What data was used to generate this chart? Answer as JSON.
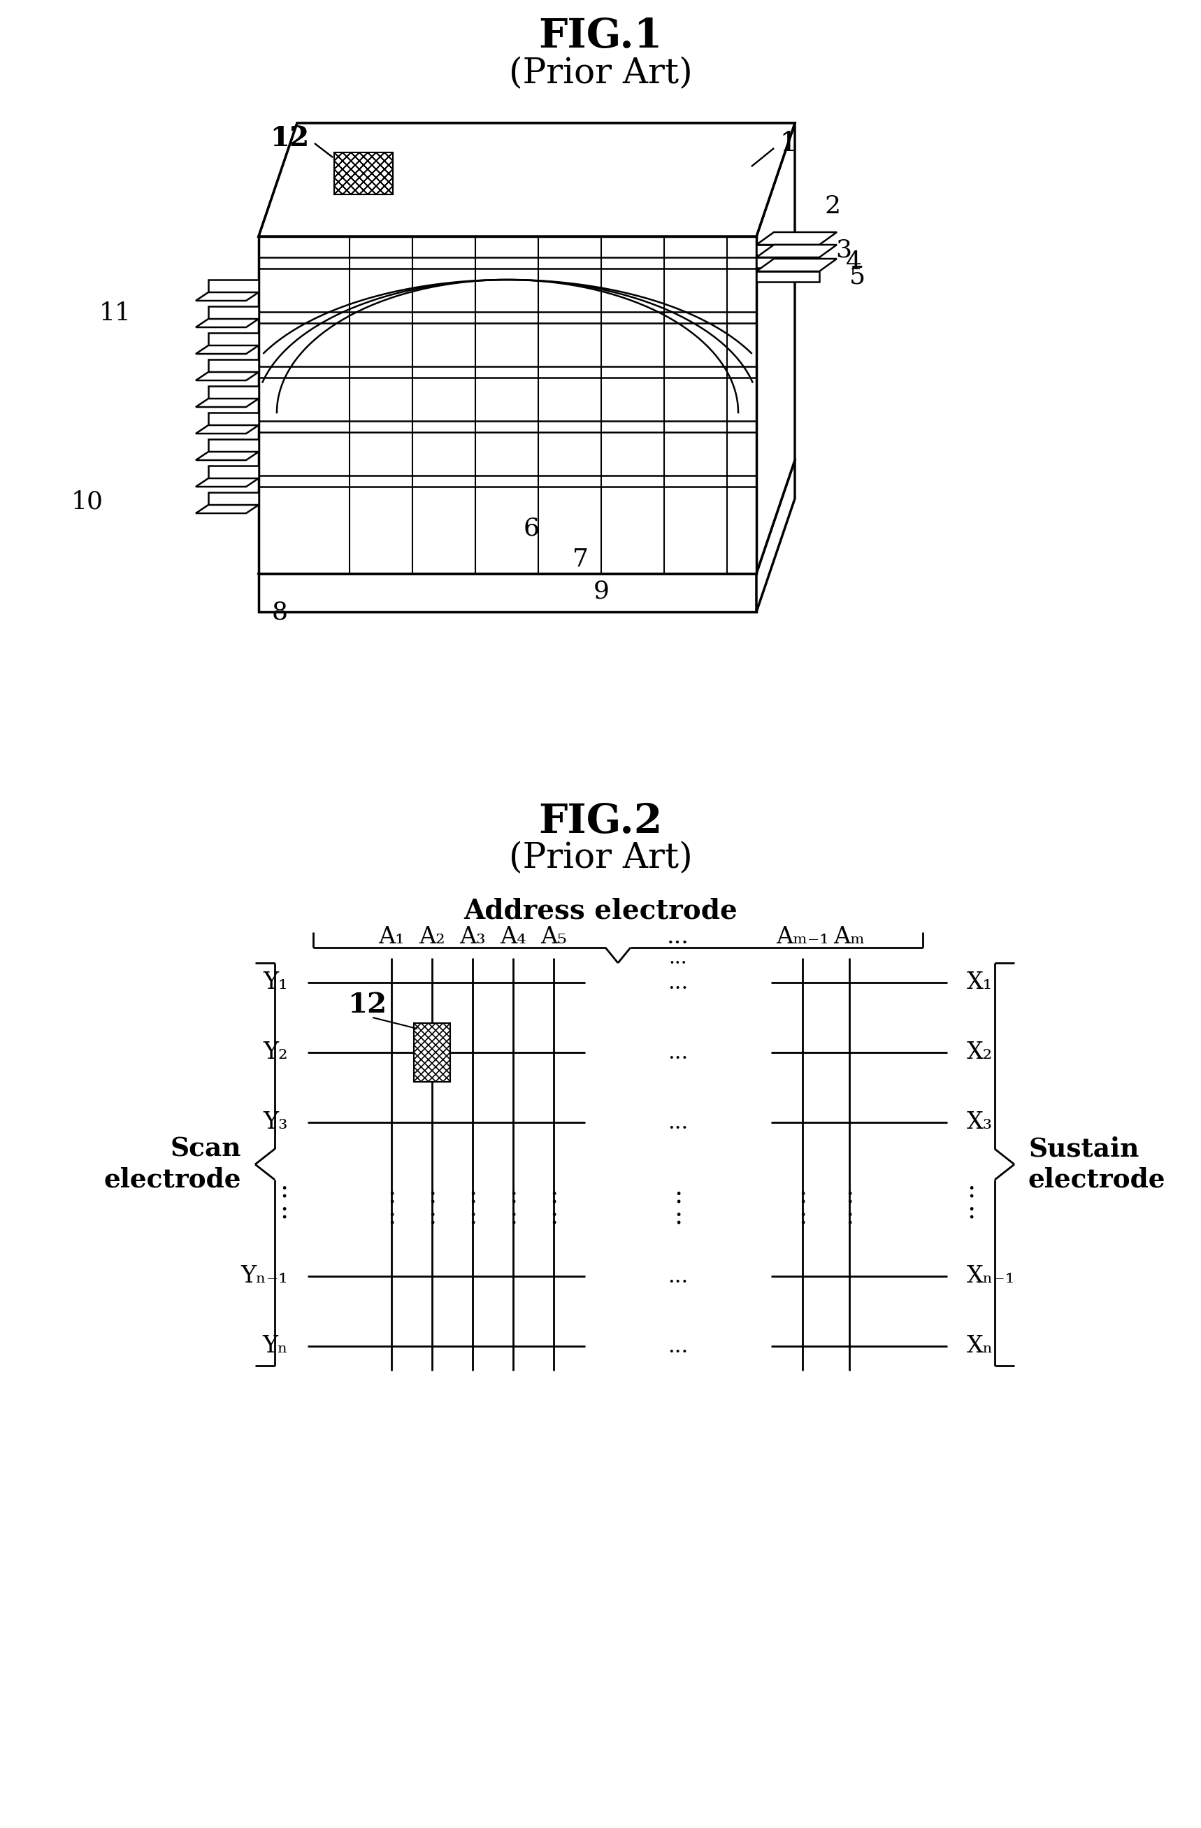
{
  "fig1_title": "FIG.1",
  "fig1_subtitle": "(Prior Art)",
  "fig2_title": "FIG.2",
  "fig2_subtitle": "(Prior Art)",
  "bg": "#ffffff",
  "fg": "#000000",
  "fig2_address": "Address electrode",
  "fig2_scan_line1": "Scan",
  "fig2_scan_line2": "electrode",
  "fig2_sustain_line1": "Sustain",
  "fig2_sustain_line2": "electrode",
  "fig2_col_A": [
    "A₁",
    "A₂",
    "A₃",
    "A₄",
    "A₅"
  ],
  "fig2_col_Am": [
    "Aₘ₋₁",
    "Aₘ"
  ],
  "fig2_row_Y": [
    "Y₁",
    "Y₂",
    "Y₃",
    "Yₙ₋₁",
    "Yₙ"
  ],
  "fig2_row_X": [
    "X₁",
    "X₂",
    "X₃",
    "Xₙ₋₁",
    "Xₙ"
  ],
  "cell_label": "12",
  "label1": "1",
  "label2": "2",
  "label3": "3",
  "label4": "4",
  "label5": "5",
  "label6": "6",
  "label7": "7",
  "label8": "8",
  "label9": "9",
  "label10": "10",
  "label11": "11",
  "label12": "12"
}
